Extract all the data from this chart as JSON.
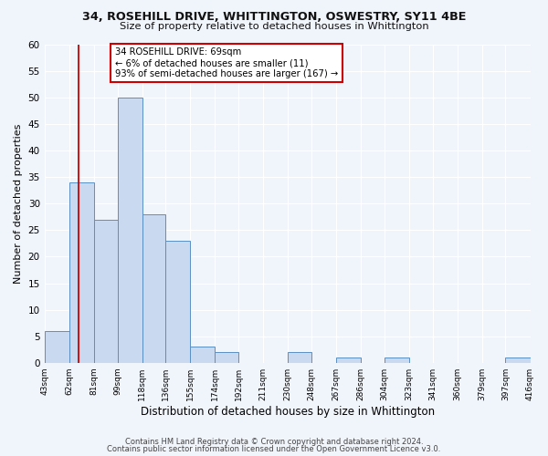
{
  "title1": "34, ROSEHILL DRIVE, WHITTINGTON, OSWESTRY, SY11 4BE",
  "title2": "Size of property relative to detached houses in Whittington",
  "xlabel": "Distribution of detached houses by size in Whittington",
  "ylabel": "Number of detached properties",
  "bar_edges": [
    43,
    62,
    81,
    99,
    118,
    136,
    155,
    174,
    192,
    211,
    230,
    248,
    267,
    286,
    304,
    323,
    341,
    360,
    379,
    397,
    416
  ],
  "bar_heights": [
    6,
    34,
    27,
    50,
    28,
    23,
    3,
    2,
    0,
    0,
    2,
    0,
    1,
    0,
    1,
    0,
    0,
    0,
    0,
    1
  ],
  "bar_color": "#c9d9f0",
  "bar_edgecolor": "#5a8fc4",
  "property_line_x": 69,
  "property_line_color": "#cc0000",
  "ylim": [
    0,
    60
  ],
  "yticks": [
    0,
    5,
    10,
    15,
    20,
    25,
    30,
    35,
    40,
    45,
    50,
    55,
    60
  ],
  "annotation_title": "34 ROSEHILL DRIVE: 69sqm",
  "annotation_line1": "← 6% of detached houses are smaller (11)",
  "annotation_line2": "93% of semi-detached houses are larger (167) →",
  "annotation_box_color": "#ffffff",
  "annotation_box_edgecolor": "#cc0000",
  "footer1": "Contains HM Land Registry data © Crown copyright and database right 2024.",
  "footer2": "Contains public sector information licensed under the Open Government Licence v3.0.",
  "background_color": "#f0f4fb",
  "plot_bg_color": "#f0f4fb",
  "tick_labels": [
    "43sqm",
    "62sqm",
    "81sqm",
    "99sqm",
    "118sqm",
    "136sqm",
    "155sqm",
    "174sqm",
    "192sqm",
    "211sqm",
    "230sqm",
    "248sqm",
    "267sqm",
    "286sqm",
    "304sqm",
    "323sqm",
    "341sqm",
    "360sqm",
    "379sqm",
    "397sqm",
    "416sqm"
  ]
}
